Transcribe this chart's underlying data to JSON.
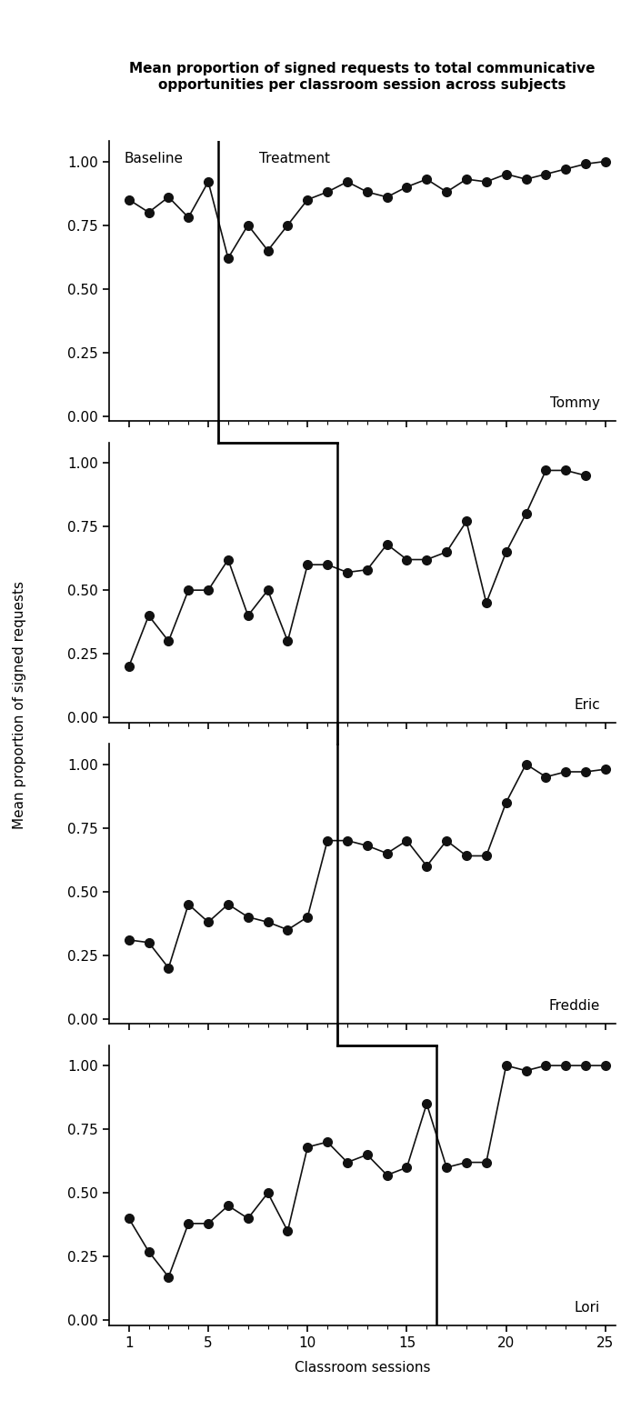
{
  "title": "Mean proportion of signed requests to total communicative\nopportunities per classroom session across subjects",
  "ylabel": "Mean proportion of signed requests",
  "xlabel": "Classroom sessions",
  "subjects": [
    "Tommy",
    "Eric",
    "Freddie",
    "Lori"
  ],
  "phase_lines": [
    5.5,
    11.5,
    11.5,
    16.5
  ],
  "tommy_x": [
    1,
    2,
    3,
    4,
    5,
    6,
    7,
    8,
    9,
    10,
    11,
    12,
    13,
    14,
    15,
    16,
    17,
    18,
    19,
    20,
    21,
    22,
    23,
    24,
    25
  ],
  "tommy_y": [
    0.85,
    0.8,
    0.86,
    0.78,
    0.92,
    0.62,
    0.75,
    0.65,
    0.75,
    0.85,
    0.88,
    0.92,
    0.88,
    0.86,
    0.9,
    0.93,
    0.88,
    0.93,
    0.92,
    0.95,
    0.93,
    0.95,
    0.97,
    0.99,
    1.0
  ],
  "eric_x": [
    1,
    2,
    3,
    4,
    5,
    6,
    7,
    8,
    9,
    10,
    11,
    12,
    13,
    14,
    15,
    16,
    17,
    18,
    19,
    20,
    21,
    22,
    23,
    24
  ],
  "eric_y": [
    0.2,
    0.4,
    0.3,
    0.5,
    0.5,
    0.62,
    0.4,
    0.5,
    0.3,
    0.6,
    0.6,
    0.57,
    0.58,
    0.68,
    0.62,
    0.62,
    0.65,
    0.77,
    0.45,
    0.65,
    0.8,
    0.97,
    0.97,
    0.95
  ],
  "freddie_x": [
    1,
    2,
    3,
    4,
    5,
    6,
    7,
    8,
    9,
    10,
    11,
    12,
    13,
    14,
    15,
    16,
    17,
    18,
    19,
    20,
    21,
    22,
    23,
    24,
    25
  ],
  "freddie_y": [
    0.31,
    0.3,
    0.2,
    0.45,
    0.38,
    0.45,
    0.4,
    0.38,
    0.35,
    0.4,
    0.7,
    0.7,
    0.68,
    0.65,
    0.7,
    0.6,
    0.7,
    0.64,
    0.64,
    0.85,
    1.0,
    0.95,
    0.97,
    0.97,
    0.98
  ],
  "lori_x": [
    1,
    2,
    3,
    4,
    5,
    6,
    7,
    8,
    9,
    10,
    11,
    12,
    13,
    14,
    15,
    16,
    17,
    18,
    19,
    20,
    21,
    22,
    23,
    24,
    25
  ],
  "lori_y": [
    0.4,
    0.27,
    0.17,
    0.38,
    0.38,
    0.45,
    0.4,
    0.5,
    0.35,
    0.68,
    0.7,
    0.62,
    0.65,
    0.57,
    0.6,
    0.85,
    0.6,
    0.62,
    0.62,
    1.0,
    0.98,
    1.0,
    1.0,
    1.0,
    1.0
  ],
  "dot_color": "#111111",
  "line_color": "#111111",
  "marker_size": 7,
  "line_width": 1.2,
  "ylim": [
    -0.02,
    1.08
  ],
  "yticks": [
    0.0,
    0.25,
    0.5,
    0.75,
    1.0
  ],
  "xlim": [
    0.0,
    25.5
  ],
  "xticks": [
    1,
    5,
    10,
    15,
    20,
    25
  ],
  "baseline_label": "Baseline",
  "treatment_label": "Treatment",
  "figsize": [
    7.05,
    15.51
  ],
  "dpi": 100
}
